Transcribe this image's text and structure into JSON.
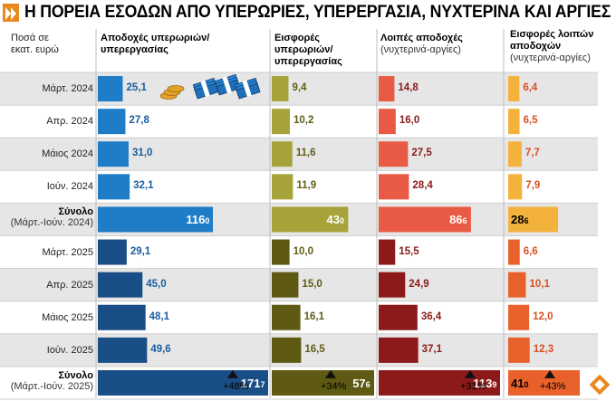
{
  "title": "Η ΠΟΡΕΙΑ ΕΣΟΔΩΝ ΑΠΟ ΥΠΕΡΩΡΙΕΣ, ΥΠΕΡΕΡΓΑΣΙΑ, ΝΥΧΤΕΡΙΝΑ ΚΑΙ ΑΡΓΙΕΣ",
  "unit_label": [
    "Ποσά σε",
    "εκατ. ευρώ"
  ],
  "colors": {
    "col1_2024": "#1f7cc6",
    "col1_2025": "#1a4e86",
    "col1_value": "#1a5d9f",
    "col2_2024": "#a5a33a",
    "col2_2025": "#5e5a13",
    "col2_value": "#5f5e15",
    "col3_2024": "#e85a43",
    "col3_2025": "#8c1a1a",
    "col3_value": "#8a1b1b",
    "col4_2024": "#f3b23c",
    "col4_2025": "#e8612b",
    "col4_value": "#d94f23",
    "band": "#e6e6e6",
    "accent": "#e8891f"
  },
  "chart_data": {
    "type": "table",
    "title": "Η ΠΟΡΕΙΑ ΕΣΟΔΩΝ ΑΠΟ ΥΠΕΡΩΡΙΕΣ, ΥΠΕΡΕΡΓΑΣΙΑ, ΝΥΧΤΕΡΙΝΑ ΚΑΙ ΑΡΓΙΕΣ",
    "columns": [
      {
        "title": "Αποδοχές υπερωριών/",
        "title2": "υπερεργασίας",
        "subtitle": ""
      },
      {
        "title": "Εισφορές",
        "title2": "υπερωριών/",
        "subtitle": "υπερεργασίας"
      },
      {
        "title": "Λοιπές αποδοχές",
        "title2": "",
        "subtitle": "(νυχτερινά-αργίες)"
      },
      {
        "title": "Εισφορές λοιπών",
        "title2": "αποδοχών",
        "subtitle": "(νυχτερινά-αργίες)"
      }
    ],
    "rows": [
      {
        "label": "Μάρτ. 2024",
        "period": "2024",
        "total": false,
        "values": [
          "25,1",
          "9,4",
          "14,8",
          "6,4"
        ]
      },
      {
        "label": "Απρ. 2024",
        "period": "2024",
        "total": false,
        "values": [
          "27,8",
          "10,2",
          "16,0",
          "6,5"
        ]
      },
      {
        "label": "Μάιος 2024",
        "period": "2024",
        "total": false,
        "values": [
          "31,0",
          "11,6",
          "27,5",
          "7,7"
        ]
      },
      {
        "label": "Ιούν. 2024",
        "period": "2024",
        "total": false,
        "values": [
          "32,1",
          "11,9",
          "28,4",
          "7,9"
        ]
      },
      {
        "label": "Σύνολο",
        "label2": "(Μάρτ.-Ιούν. 2024)",
        "period": "2024",
        "total": true,
        "values": [
          "116,0",
          "43,0",
          "86,6",
          "28,6"
        ]
      },
      {
        "label": "Μάρτ. 2025",
        "period": "2025",
        "total": false,
        "values": [
          "29,1",
          "10,0",
          "15,5",
          "6,6"
        ]
      },
      {
        "label": "Απρ. 2025",
        "period": "2025",
        "total": false,
        "values": [
          "45,0",
          "15,0",
          "24,9",
          "10,1"
        ]
      },
      {
        "label": "Μάιος 2025",
        "period": "2025",
        "total": false,
        "values": [
          "48,1",
          "16,1",
          "36,4",
          "12,0"
        ]
      },
      {
        "label": "Ιούν. 2025",
        "period": "2025",
        "total": false,
        "values": [
          "49,6",
          "16,5",
          "37,1",
          "12,3"
        ]
      },
      {
        "label": "Σύνολο",
        "label2": "(Μάρτ.-Ιούν. 2025)",
        "period": "2025",
        "total": true,
        "values": [
          "171,7",
          "57,6",
          "113,9",
          "41,0"
        ]
      }
    ],
    "changes": [
      "+48%",
      "+34%",
      "+31%",
      "+43%"
    ]
  }
}
